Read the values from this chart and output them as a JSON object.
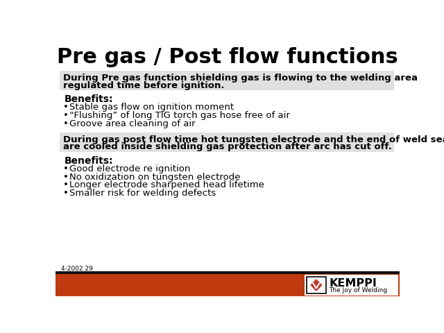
{
  "title": "Pre gas / Post flow functions",
  "title_fontsize": 22,
  "bg_color": "#ffffff",
  "section1_bold_line1": "During Pre gas function shielding gas is flowing to the welding area",
  "section1_bold_line2": "regulated time before ignition.",
  "benefits1_header": "Benefits:",
  "benefits1_items": [
    "Stable gas flow on ignition moment",
    "“Flushing” of long TIG torch gas hose free of air",
    "Groove area cleaning of air"
  ],
  "section2_bold_line1": "During gas post flow time hot tungsten electrode and the end of weld seam",
  "section2_bold_line2": "are cooled inside shielding gas protection after arc has cut off.",
  "benefits2_header": "Benefits:",
  "benefits2_items": [
    "Good electrode re ignition",
    "No oxidization on tungsten electrode",
    "Longer electrode sharpened head lifetime",
    "Smaller risk for welding defects"
  ],
  "footer_text": "4-2002 29",
  "footer_fontsize": 6.5,
  "bar_color_orange": "#c03a10",
  "bar_color_dark": "#111111",
  "kemppi_text": "KEMPPI",
  "kemppi_sub": "The Joy of Welding",
  "body_fontsize": 9.5,
  "bold_fontsize": 9.5,
  "benefits_header_fontsize": 10,
  "section_bg": "#e0e0e0"
}
